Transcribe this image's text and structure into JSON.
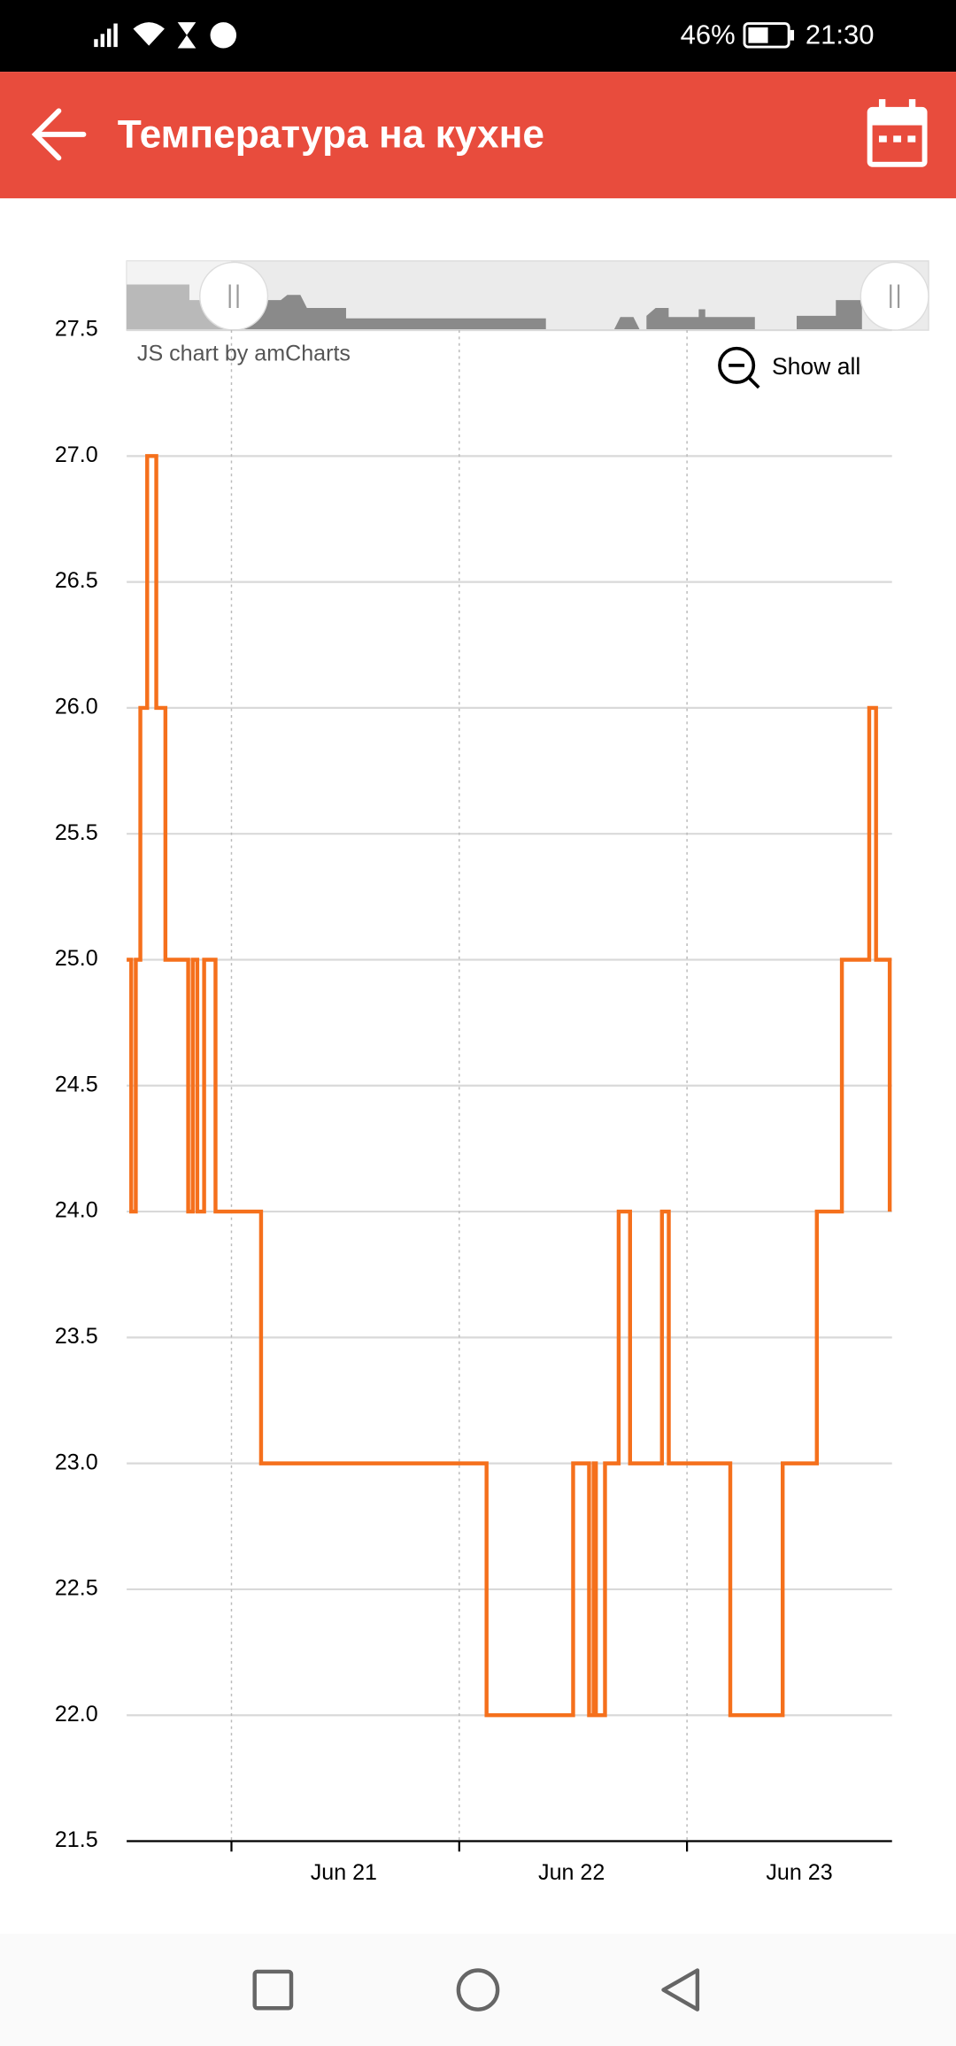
{
  "status_bar": {
    "battery": "46%",
    "time": "21:30"
  },
  "app_bar": {
    "title": "Температура на кухне"
  },
  "chart_data": {
    "type": "line",
    "step": true,
    "credit": "JS chart by amCharts",
    "zoom_button": "Show all",
    "x": [
      20.54,
      20.56,
      20.58,
      20.6,
      20.63,
      20.67,
      20.71,
      20.81,
      20.83,
      20.85,
      20.88,
      20.93,
      21.13,
      22.12,
      22.5,
      22.57,
      22.59,
      22.6,
      22.64,
      22.7,
      22.75,
      22.89,
      22.92,
      23.19,
      23.42,
      23.57,
      23.68,
      23.8,
      23.83,
      23.89
    ],
    "series": [
      {
        "color": "#f5701c",
        "values": [
          25,
          24,
          25,
          26,
          27,
          26,
          25,
          24,
          25,
          24,
          25,
          24,
          23,
          22,
          23,
          22,
          23,
          22,
          23,
          24,
          23,
          24,
          23,
          22,
          23,
          24,
          25,
          26,
          25,
          24
        ]
      }
    ],
    "xlim": [
      20.54,
      23.9
    ],
    "ylim": [
      21.5,
      27.5
    ],
    "xticks": [
      {
        "value": 21,
        "label": "Jun 21"
      },
      {
        "value": 22,
        "label": "Jun 22"
      },
      {
        "value": 23,
        "label": "Jun 23"
      }
    ],
    "yticks": [
      21.5,
      {
        "value": 22,
        "label": "22.0"
      },
      22.5,
      {
        "value": 23,
        "label": "23.0"
      },
      23.5,
      {
        "value": 24,
        "label": "24.0"
      },
      24.5,
      {
        "value": 25,
        "label": "25.0"
      },
      25.5,
      {
        "value": 26,
        "label": "26.0"
      },
      26.5,
      {
        "value": 27,
        "label": "27.0"
      },
      27.5
    ],
    "grid": true
  }
}
